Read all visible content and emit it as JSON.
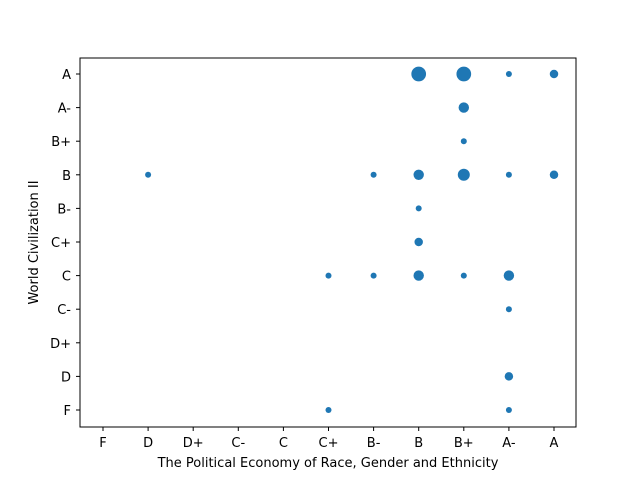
{
  "chart_data": {
    "type": "scatter",
    "xlabel": "The Political Economy of Race, Gender and Ethnicity",
    "ylabel": "World Civilization II",
    "x_categories": [
      "F",
      "D",
      "D+",
      "C-",
      "C",
      "C+",
      "B-",
      "B",
      "B+",
      "A-",
      "A"
    ],
    "y_categories": [
      "F",
      "D",
      "D+",
      "C-",
      "C",
      "C+",
      "B-",
      "B",
      "B+",
      "A-",
      "A"
    ],
    "marker_color": "#1f77b4",
    "grid": false,
    "points": [
      {
        "x": "D",
        "y": "B",
        "count": 1
      },
      {
        "x": "C+",
        "y": "C",
        "count": 1
      },
      {
        "x": "C+",
        "y": "F",
        "count": 1
      },
      {
        "x": "B-",
        "y": "B",
        "count": 1
      },
      {
        "x": "B-",
        "y": "C",
        "count": 1
      },
      {
        "x": "B",
        "y": "A",
        "count": 6
      },
      {
        "x": "B",
        "y": "B",
        "count": 3
      },
      {
        "x": "B",
        "y": "B-",
        "count": 1
      },
      {
        "x": "B",
        "y": "C+",
        "count": 2
      },
      {
        "x": "B",
        "y": "C",
        "count": 3
      },
      {
        "x": "B+",
        "y": "A",
        "count": 6
      },
      {
        "x": "B+",
        "y": "A-",
        "count": 3
      },
      {
        "x": "B+",
        "y": "B+",
        "count": 1
      },
      {
        "x": "B+",
        "y": "B",
        "count": 4
      },
      {
        "x": "B+",
        "y": "C",
        "count": 1
      },
      {
        "x": "A-",
        "y": "A",
        "count": 1
      },
      {
        "x": "A-",
        "y": "B",
        "count": 1
      },
      {
        "x": "A-",
        "y": "C",
        "count": 3
      },
      {
        "x": "A-",
        "y": "C-",
        "count": 1
      },
      {
        "x": "A-",
        "y": "D",
        "count": 2
      },
      {
        "x": "A-",
        "y": "F",
        "count": 1
      },
      {
        "x": "A",
        "y": "A",
        "count": 2
      },
      {
        "x": "A",
        "y": "B",
        "count": 2
      }
    ]
  }
}
